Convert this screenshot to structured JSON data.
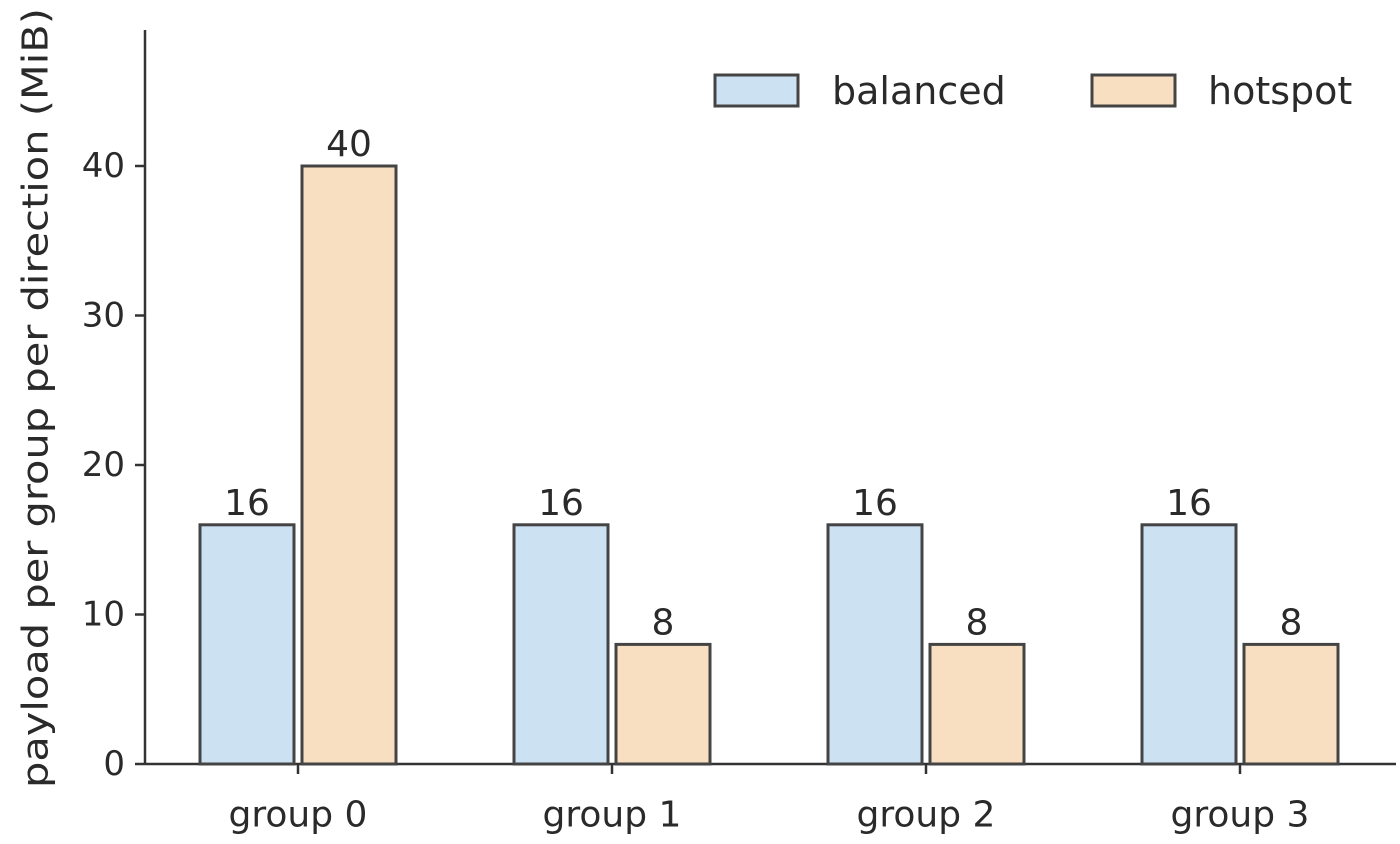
{
  "chart_data": {
    "type": "bar",
    "categories": [
      "group 0",
      "group 1",
      "group 2",
      "group 3"
    ],
    "series": [
      {
        "name": "balanced",
        "values": [
          16,
          16,
          16,
          16
        ],
        "color": "#cce2f3"
      },
      {
        "name": "hotspot",
        "values": [
          40,
          8,
          8,
          8
        ],
        "color": "#f8dfc1"
      }
    ],
    "ylabel": "payload per group per direction (MiB)",
    "xlabel": "",
    "ylim": [
      0,
      40
    ],
    "yticks": [
      "0",
      "10",
      "20",
      "30",
      "40"
    ],
    "data_labels": [
      [
        "16",
        "16",
        "16",
        "16"
      ],
      [
        "40",
        "8",
        "8",
        "8"
      ]
    ],
    "grid": false,
    "legend_position": "top-right",
    "bar_edge_color": "#444444",
    "axis_color": "#333333"
  }
}
